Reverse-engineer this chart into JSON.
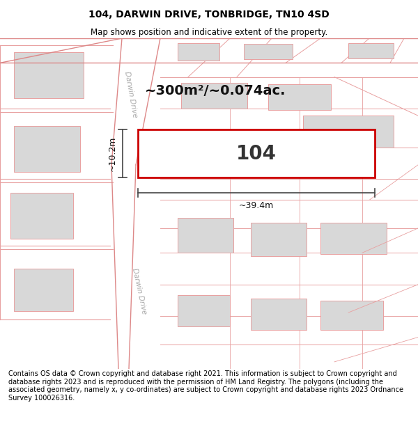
{
  "title": "104, DARWIN DRIVE, TONBRIDGE, TN10 4SD",
  "subtitle": "Map shows position and indicative extent of the property.",
  "footer": "Contains OS data © Crown copyright and database right 2021. This information is subject to Crown copyright and database rights 2023 and is reproduced with the permission of HM Land Registry. The polygons (including the associated geometry, namely x, y co-ordinates) are subject to Crown copyright and database rights 2023 Ordnance Survey 100026316.",
  "area_text": "~300m²/~0.074ac.",
  "plot_label": "104",
  "dim_width": "~39.4m",
  "dim_height": "~10.2m",
  "bg_color": "#ffffff",
  "map_bg": "#ffffff",
  "road_color": "#ffffff",
  "plot_fill": "#ffffff",
  "plot_edge_color": "#cc0000",
  "building_fill": "#d8d8d8",
  "line_color": "#e8a0a0",
  "road_line_color": "#dd8888",
  "dim_line_color": "#444444",
  "title_fontsize": 10,
  "subtitle_fontsize": 8.5,
  "footer_fontsize": 7.0,
  "label_fontsize": 7.5
}
